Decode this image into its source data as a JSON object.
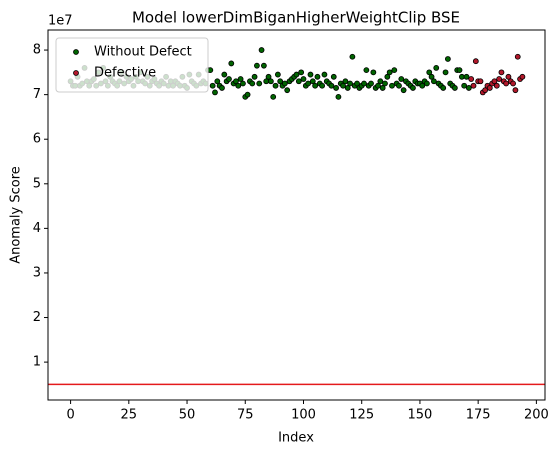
{
  "chart_data": {
    "type": "scatter",
    "title": "Model lowerDimBiganHigherWeightClip BSE",
    "x_label": "Index",
    "y_label": "Anomaly Score",
    "y_offset_label": "1e7",
    "xlim": [
      -9.7,
      203.7
    ],
    "ylim": [
      0.15,
      8.45
    ],
    "xticks": [
      0,
      25,
      50,
      75,
      100,
      125,
      150,
      175,
      200
    ],
    "yticks": [
      1,
      2,
      3,
      4,
      5,
      6,
      7,
      8
    ],
    "threshold": {
      "value": 0.5,
      "color": "#e41a1c"
    },
    "legend": "upper left",
    "series": [
      {
        "name": "Without Defect",
        "color": "#006400",
        "x": [
          0,
          1,
          2,
          3,
          4,
          5,
          6,
          7,
          8,
          9,
          10,
          11,
          12,
          13,
          14,
          15,
          16,
          17,
          18,
          19,
          20,
          21,
          22,
          23,
          24,
          25,
          26,
          27,
          28,
          29,
          30,
          31,
          32,
          33,
          34,
          35,
          36,
          37,
          38,
          39,
          40,
          41,
          42,
          43,
          44,
          45,
          46,
          47,
          48,
          49,
          50,
          51,
          52,
          53,
          54,
          55,
          56,
          57,
          58,
          59,
          60,
          61,
          62,
          63,
          64,
          65,
          66,
          67,
          68,
          69,
          70,
          71,
          72,
          73,
          74,
          75,
          76,
          77,
          78,
          79,
          80,
          81,
          82,
          83,
          84,
          85,
          86,
          87,
          88,
          89,
          90,
          91,
          92,
          93,
          94,
          95,
          96,
          97,
          98,
          99,
          100,
          101,
          102,
          103,
          104,
          105,
          106,
          107,
          108,
          109,
          110,
          111,
          112,
          113,
          114,
          115,
          116,
          117,
          118,
          119,
          120,
          121,
          122,
          123,
          124,
          125,
          126,
          127,
          128,
          129,
          130,
          131,
          132,
          133,
          134,
          135,
          136,
          137,
          138,
          139,
          140,
          141,
          142,
          143,
          144,
          145,
          146,
          147,
          148,
          149,
          150,
          151,
          152,
          153,
          154,
          155,
          156,
          157,
          158,
          159,
          160,
          161,
          162,
          163,
          164,
          165,
          166,
          167,
          168,
          169,
          170,
          171
        ],
        "values": [
          7.3,
          7.2,
          7.2,
          7.4,
          7.2,
          7.25,
          7.6,
          7.3,
          7.2,
          7.3,
          7.35,
          7.2,
          7.5,
          7.25,
          7.6,
          7.3,
          7.2,
          7.4,
          7.3,
          7.25,
          7.2,
          7.3,
          7.5,
          7.25,
          7.4,
          7.3,
          7.35,
          7.2,
          7.4,
          7.3,
          7.5,
          7.3,
          7.25,
          7.4,
          7.2,
          7.3,
          7.35,
          7.25,
          7.2,
          7.3,
          7.25,
          7.4,
          7.2,
          7.3,
          7.2,
          7.3,
          7.25,
          7.2,
          7.4,
          7.2,
          7.15,
          7.45,
          7.3,
          7.25,
          7.2,
          7.45,
          7.25,
          7.3,
          7.25,
          7.55,
          7.55,
          7.2,
          7.05,
          7.3,
          7.2,
          7.15,
          7.45,
          7.3,
          7.35,
          7.7,
          7.25,
          7.3,
          7.2,
          7.35,
          7.25,
          6.95,
          7.0,
          7.3,
          7.25,
          7.4,
          7.65,
          7.25,
          8.0,
          7.65,
          7.3,
          7.4,
          7.3,
          6.95,
          7.2,
          7.45,
          7.3,
          7.2,
          7.25,
          7.1,
          7.3,
          7.35,
          7.4,
          7.45,
          7.3,
          7.5,
          7.35,
          7.2,
          7.25,
          7.45,
          7.3,
          7.2,
          7.4,
          7.25,
          7.2,
          7.45,
          7.3,
          7.25,
          7.2,
          7.4,
          7.15,
          6.95,
          7.25,
          7.2,
          7.3,
          7.15,
          7.25,
          7.85,
          7.2,
          7.25,
          7.15,
          7.2,
          7.25,
          7.55,
          7.2,
          7.25,
          7.5,
          7.15,
          7.2,
          7.3,
          7.15,
          7.25,
          7.4,
          7.5,
          7.2,
          7.55,
          7.25,
          7.2,
          7.35,
          7.1,
          7.3,
          7.25,
          7.2,
          7.15,
          7.3,
          7.25,
          7.25,
          7.2,
          7.3,
          7.25,
          7.5,
          7.4,
          7.3,
          7.6,
          7.25,
          7.2,
          7.15,
          7.5,
          7.8,
          7.25,
          7.2,
          7.15,
          7.55,
          7.55,
          7.4,
          7.2,
          7.4,
          7.15
        ]
      },
      {
        "name": "Defective",
        "color": "#b2182b",
        "x": [
          172,
          173,
          174,
          175,
          176,
          177,
          178,
          179,
          180,
          181,
          182,
          183,
          184,
          185,
          186,
          187,
          188,
          189,
          190,
          191,
          192,
          193,
          194
        ],
        "values": [
          7.35,
          7.2,
          7.75,
          7.3,
          7.3,
          7.05,
          7.1,
          7.2,
          7.15,
          7.25,
          7.3,
          7.2,
          7.35,
          7.5,
          7.3,
          7.25,
          7.4,
          7.3,
          7.25,
          7.1,
          7.85,
          7.35,
          7.4
        ]
      }
    ]
  }
}
